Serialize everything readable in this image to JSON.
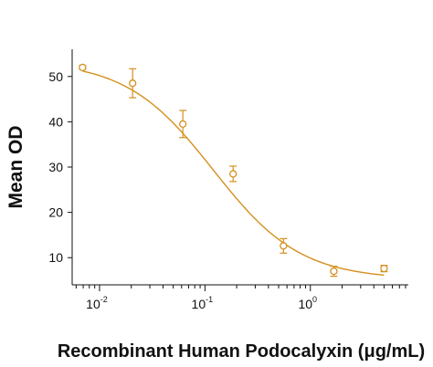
{
  "chart_data": {
    "type": "scatter",
    "title": "",
    "xlabel": "Recombinant Human Podocalyxin (μg/mL)",
    "ylabel": "Mean OD",
    "x_scale": "log",
    "xlim": [
      0.0055,
      8.5
    ],
    "ylim": [
      4,
      56
    ],
    "x_ticks": [
      {
        "value": 0.01,
        "base": "10",
        "exp": "-2"
      },
      {
        "value": 0.1,
        "base": "10",
        "exp": "-1"
      },
      {
        "value": 1,
        "base": "10",
        "exp": "0"
      }
    ],
    "y_ticks": [
      10,
      20,
      30,
      40,
      50
    ],
    "grid": false,
    "color": "#D4901E",
    "points": [
      {
        "x": 0.0069,
        "y": 52.0,
        "err": 0.4
      },
      {
        "x": 0.0206,
        "y": 48.5,
        "err": 3.2
      },
      {
        "x": 0.0617,
        "y": 39.5,
        "err": 3.0
      },
      {
        "x": 0.185,
        "y": 28.5,
        "err": 1.7
      },
      {
        "x": 0.556,
        "y": 12.6,
        "err": 1.6
      },
      {
        "x": 1.67,
        "y": 7.0,
        "err": 1.1
      },
      {
        "x": 5.0,
        "y": 7.6,
        "err": 0.7
      }
    ],
    "fit": {
      "model": "4PL",
      "top": 53.5,
      "bottom": 5.2,
      "ec50": 0.12,
      "hill": 1.05
    }
  }
}
